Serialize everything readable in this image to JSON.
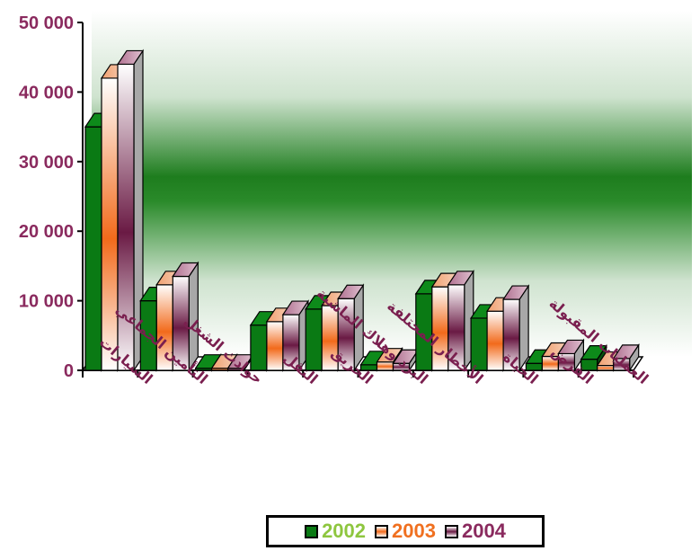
{
  "chart_data": {
    "type": "bar",
    "title": "",
    "xlabel": "",
    "ylabel": "",
    "ylim": [
      0,
      50000
    ],
    "yticks": [
      "0",
      "10 000",
      "20 000",
      "30 000",
      "40 000",
      "50 000"
    ],
    "grid": false,
    "legend_position": "bottom",
    "categories": [
      "السيارات",
      "التأمين الجماعي",
      "حوادث الشغل",
      "النقل",
      "الحريق",
      "البرد وهلاك الماشية",
      "الأخطار المختلفة",
      "الحياة",
      "القرض",
      "العمليات المقبولة"
    ],
    "series": [
      {
        "name": "2002",
        "values": [
          35000,
          10000,
          300,
          6500,
          8800,
          800,
          11000,
          7500,
          1000,
          1600
        ]
      },
      {
        "name": "2003",
        "values": [
          42000,
          12300,
          300,
          7000,
          9300,
          1200,
          12000,
          8500,
          2000,
          700
        ]
      },
      {
        "name": "2004",
        "values": [
          44000,
          13500,
          300,
          8000,
          10300,
          1000,
          12300,
          10200,
          2400,
          1700
        ]
      }
    ]
  },
  "colors": {
    "axis_text": "#8a2a5e",
    "category_text": "#7a1f4f",
    "series_2002": "#0a7a14",
    "series_2003": "#f07020",
    "series_2004": "#7a2050",
    "legend_2002_text": "#8ec63f",
    "legend_2003_text": "#f07020",
    "legend_2004_text": "#8a2a5e",
    "band_green": "#2a8a2a"
  }
}
